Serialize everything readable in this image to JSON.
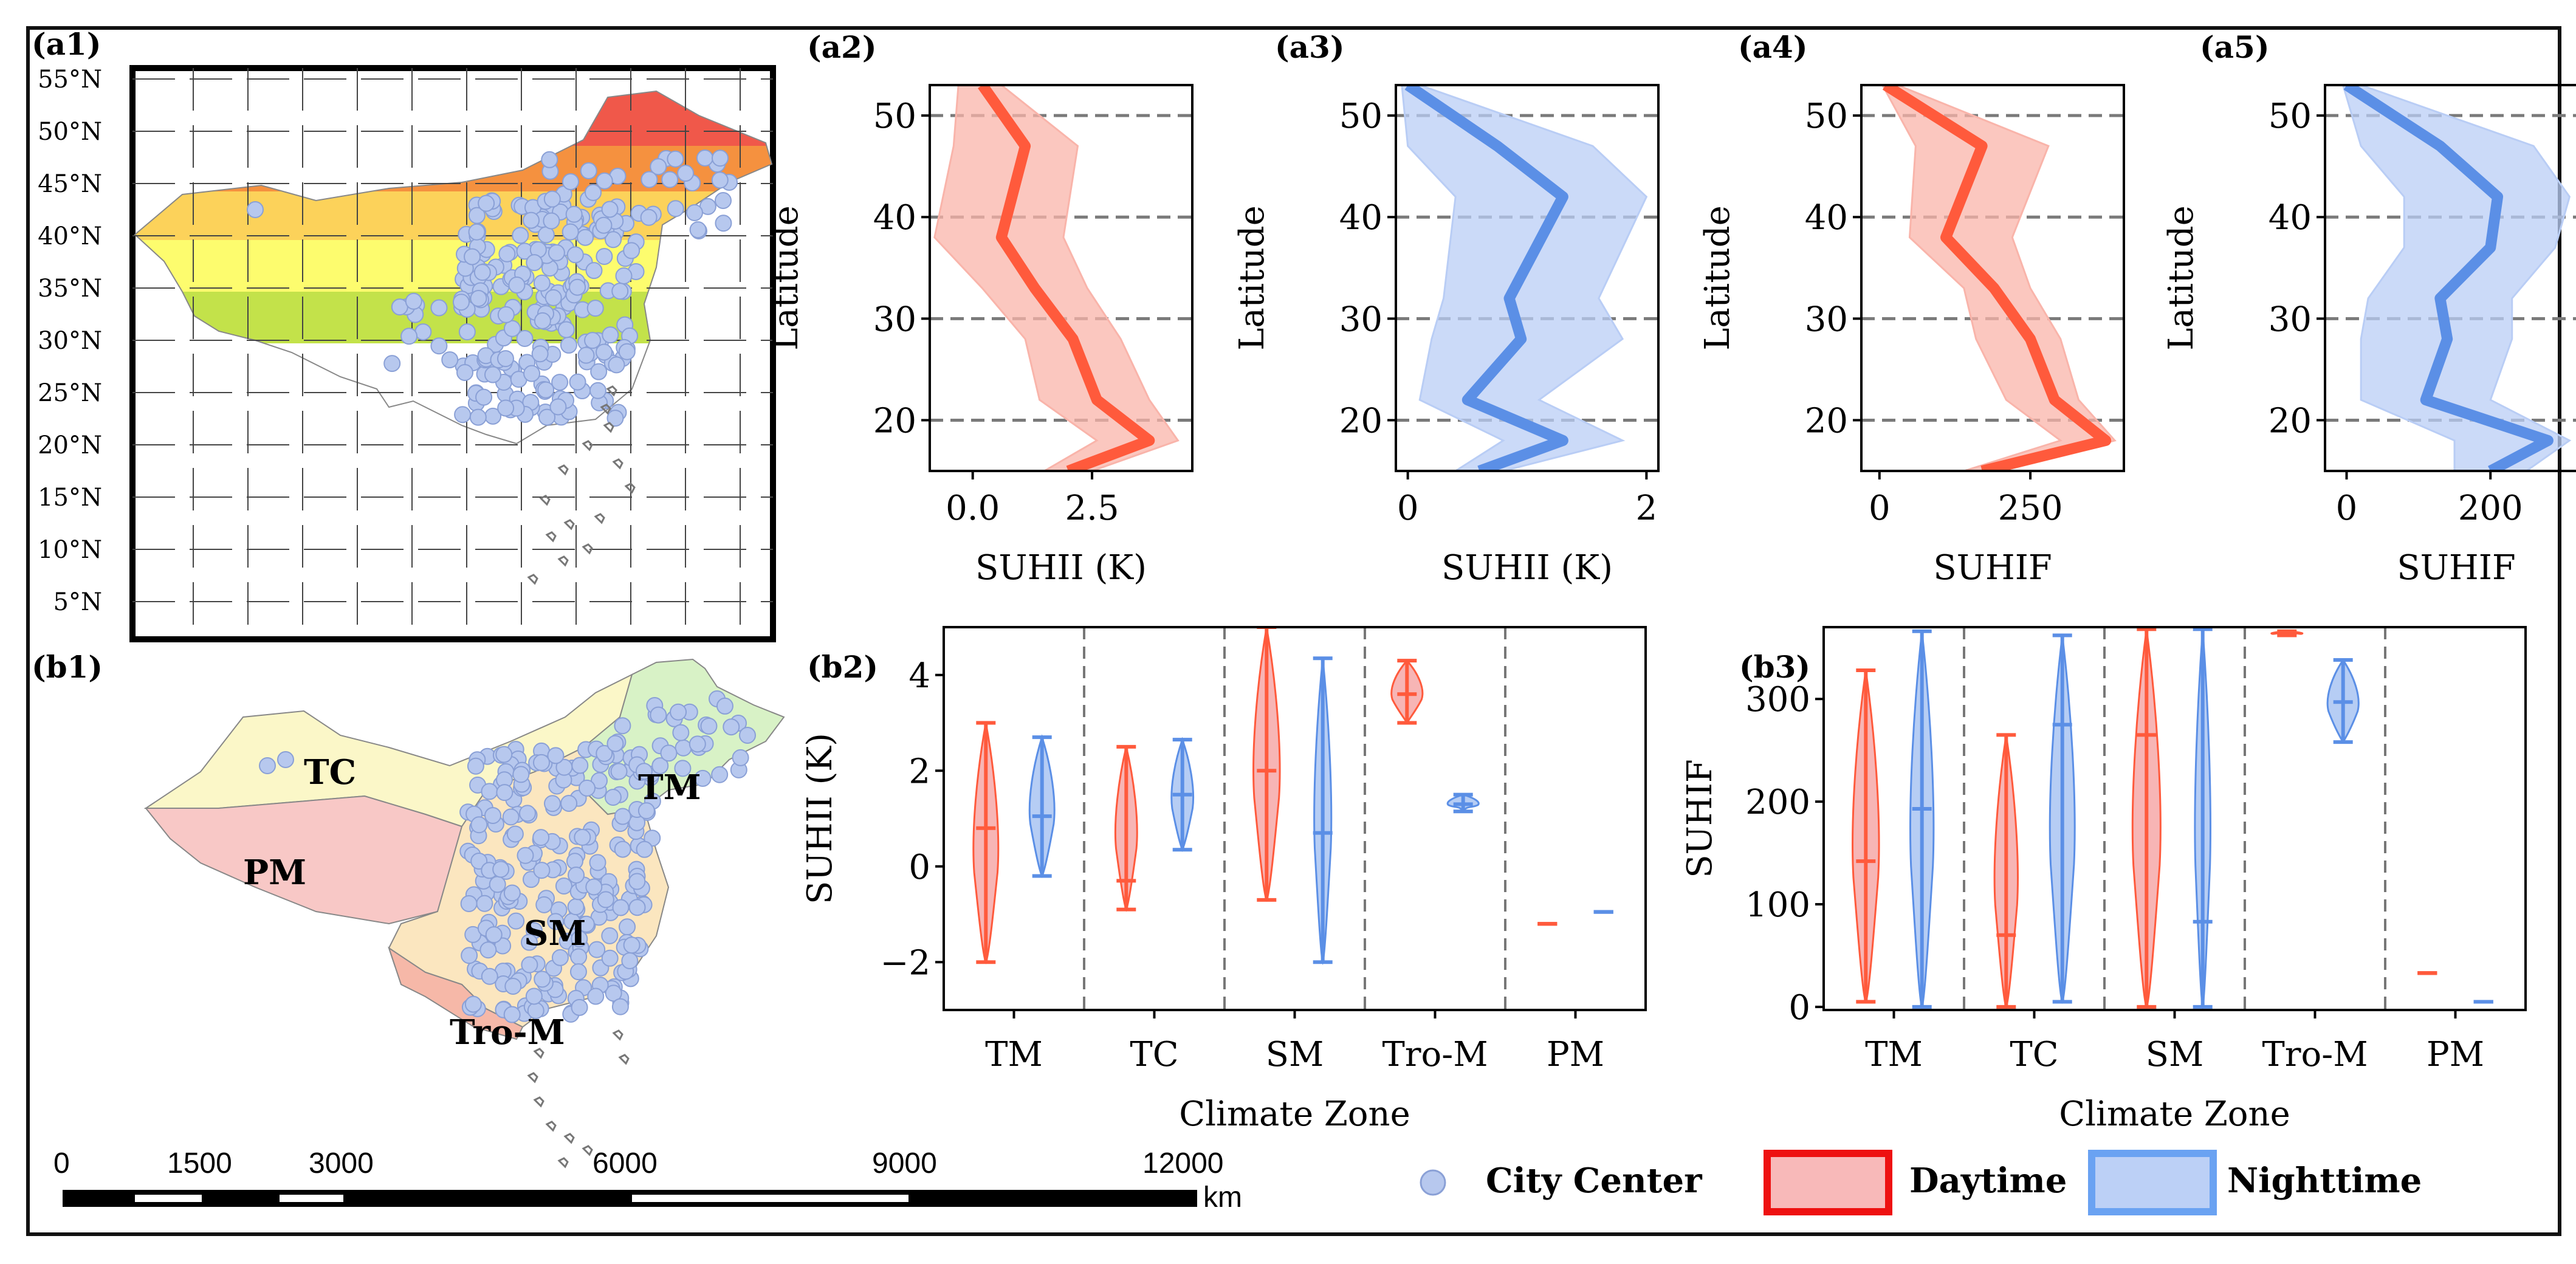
{
  "colors": {
    "day": "#ff5a3c",
    "day_fill": "#f9b4aa",
    "night": "#5b8fe6",
    "night_fill": "#b9cdf5",
    "violin_day_fill": "#f6a8a8",
    "violin_night_fill": "#a9c4f2",
    "city": "#b7c8ee",
    "city_edge": "#8aa0d6"
  },
  "panel_labels": {
    "a1": "(a1)",
    "a2": "(a2)",
    "a3": "(a3)",
    "a4": "(a4)",
    "a5": "(a5)",
    "b1": "(b1)",
    "b2": "(b2)",
    "b3": "(b3)"
  },
  "map_a1": {
    "lat_labels": [
      "55°N",
      "50°N",
      "45°N",
      "40°N",
      "35°N",
      "30°N",
      "25°N",
      "20°N",
      "15°N",
      "10°N",
      "5°N"
    ],
    "band_colors": [
      "#f0584a",
      "#f5913f",
      "#fcd25a",
      "#fdfc6e",
      "#c3e24a"
    ]
  },
  "map_b1": {
    "zones": [
      "TC",
      "PM",
      "TM",
      "SM",
      "Tro-M"
    ],
    "zone_colors": {
      "TC": "#fbf7c8",
      "PM": "#f8c8c6",
      "TM": "#d8f2c6",
      "SM": "#fbe6bf",
      "Tro-M": "#f6b8a8"
    },
    "scale_labels": [
      "0",
      "1500",
      "3000",
      "6000",
      "9000",
      "12000"
    ],
    "scale_unit": "km"
  },
  "legend": {
    "city_center": "City Center",
    "daytime": "Daytime",
    "nighttime": "Nighttime"
  },
  "chart_data": [
    {
      "id": "a2",
      "type": "line",
      "xlabel": "SUHII (K)",
      "ylabel": "Latitude",
      "xlim": [
        -0.9,
        4.6
      ],
      "ylim": [
        15,
        53
      ],
      "xticks": [
        0,
        2.5
      ],
      "xtick_labels": [
        "0.0",
        "2.5"
      ],
      "yticks": [
        20,
        30,
        40,
        50
      ],
      "ytick_labels": [
        "20",
        "30",
        "40",
        "50"
      ],
      "series": [
        {
          "name": "Daytime",
          "color": "day",
          "lat": [
            53,
            47,
            38,
            33,
            28,
            22,
            18,
            15
          ],
          "mean": [
            0.2,
            1.1,
            0.6,
            1.3,
            2.1,
            2.6,
            3.7,
            2.0
          ],
          "low": [
            -0.3,
            -0.4,
            -0.8,
            0.2,
            1.1,
            1.4,
            2.6,
            1.5
          ],
          "high": [
            0.6,
            2.2,
            1.9,
            2.4,
            3.1,
            3.7,
            4.3,
            2.5
          ]
        }
      ]
    },
    {
      "id": "a3",
      "type": "line",
      "xlabel": "SUHII (K)",
      "ylabel": "Latitude",
      "xlim": [
        -0.1,
        2.1
      ],
      "ylim": [
        15,
        53
      ],
      "xticks": [
        0,
        2
      ],
      "xtick_labels": [
        "0",
        "2"
      ],
      "yticks": [
        20,
        30,
        40,
        50
      ],
      "ytick_labels": [
        "20",
        "30",
        "40",
        "50"
      ],
      "series": [
        {
          "name": "Nighttime",
          "color": "night",
          "lat": [
            53,
            47,
            42,
            32,
            28,
            22,
            18,
            15
          ],
          "mean": [
            0.0,
            0.75,
            1.3,
            0.85,
            0.95,
            0.5,
            1.3,
            0.6
          ],
          "low": [
            -0.05,
            0.0,
            0.4,
            0.3,
            0.2,
            0.1,
            0.8,
            0.4
          ],
          "high": [
            0.1,
            1.55,
            2.0,
            1.6,
            1.8,
            1.1,
            1.8,
            0.8
          ]
        }
      ]
    },
    {
      "id": "a4",
      "type": "line",
      "xlabel": "SUHIF",
      "ylabel": "Latitude",
      "xlim": [
        -30,
        405
      ],
      "ylim": [
        15,
        53
      ],
      "xticks": [
        0,
        250
      ],
      "xtick_labels": [
        "0",
        "250"
      ],
      "yticks": [
        20,
        30,
        40,
        50
      ],
      "ytick_labels": [
        "20",
        "30",
        "40",
        "50"
      ],
      "series": [
        {
          "name": "Daytime",
          "color": "day",
          "lat": [
            53,
            47,
            38,
            33,
            28,
            22,
            18,
            15
          ],
          "mean": [
            10,
            170,
            110,
            190,
            250,
            290,
            375,
            170
          ],
          "low": [
            5,
            60,
            50,
            140,
            160,
            210,
            300,
            140
          ],
          "high": [
            30,
            280,
            220,
            250,
            300,
            330,
            390,
            200
          ]
        }
      ]
    },
    {
      "id": "a5",
      "type": "line",
      "xlabel": "SUHIF",
      "ylabel": "Latitude",
      "xlim": [
        -30,
        335
      ],
      "ylim": [
        15,
        53
      ],
      "xticks": [
        0,
        200
      ],
      "xtick_labels": [
        "0",
        "200"
      ],
      "yticks": [
        20,
        30,
        40,
        50
      ],
      "ytick_labels": [
        "20",
        "30",
        "40",
        "50"
      ],
      "series": [
        {
          "name": "Nighttime",
          "color": "night",
          "lat": [
            53,
            47,
            42,
            37,
            32,
            28,
            22,
            18,
            15
          ],
          "mean": [
            0,
            130,
            210,
            200,
            130,
            140,
            110,
            280,
            200
          ],
          "low": [
            -5,
            20,
            80,
            80,
            30,
            20,
            20,
            150,
            150
          ],
          "high": [
            20,
            260,
            310,
            290,
            230,
            230,
            200,
            310,
            250
          ]
        }
      ]
    },
    {
      "id": "b2",
      "type": "violin",
      "xlabel": "Climate Zone",
      "ylabel": "SUHII (K)",
      "categories": [
        "TM",
        "TC",
        "SM",
        "Tro-M",
        "PM"
      ],
      "ylim": [
        -3,
        5
      ],
      "yticks": [
        -2,
        0,
        2,
        4
      ],
      "ytick_labels": [
        "−2",
        "0",
        "2",
        "4"
      ],
      "series": [
        {
          "name": "Daytime",
          "color": "day",
          "min": [
            -2.0,
            -0.9,
            -0.7,
            3.0,
            -1.2
          ],
          "median": [
            0.8,
            -0.3,
            2.0,
            3.6,
            -1.2
          ],
          "max": [
            3.0,
            2.5,
            5.0,
            4.3,
            -1.2
          ],
          "width": [
            0.8,
            0.7,
            0.85,
            1.0,
            0.4
          ]
        },
        {
          "name": "Nighttime",
          "color": "night",
          "min": [
            -0.2,
            0.35,
            -2.0,
            1.15,
            -0.95
          ],
          "median": [
            1.05,
            1.5,
            0.7,
            1.3,
            -0.95
          ],
          "max": [
            2.7,
            2.65,
            4.35,
            1.5,
            -0.95
          ],
          "width": [
            0.8,
            0.7,
            0.55,
            1.0,
            0.4
          ]
        }
      ]
    },
    {
      "id": "b3",
      "type": "violin",
      "xlabel": "Climate Zone",
      "ylabel": "SUHIF",
      "categories": [
        "TM",
        "TC",
        "SM",
        "Tro-M",
        "PM"
      ],
      "ylim": [
        -3,
        370
      ],
      "yticks": [
        0,
        100,
        200,
        300
      ],
      "ytick_labels": [
        "0",
        "100",
        "200",
        "300"
      ],
      "series": [
        {
          "name": "Daytime",
          "color": "day",
          "min": [
            5,
            0,
            0,
            362,
            33
          ],
          "median": [
            142,
            70,
            265,
            364,
            33
          ],
          "max": [
            328,
            265,
            368,
            366,
            33
          ],
          "width": [
            0.85,
            0.75,
            0.9,
            1.0,
            0.4
          ]
        },
        {
          "name": "Nighttime",
          "color": "night",
          "min": [
            0,
            5,
            0,
            258,
            5
          ],
          "median": [
            193,
            275,
            83,
            297,
            5
          ],
          "max": [
            366,
            362,
            368,
            338,
            5
          ],
          "width": [
            0.75,
            0.8,
            0.5,
            1.0,
            0.4
          ]
        }
      ]
    }
  ]
}
